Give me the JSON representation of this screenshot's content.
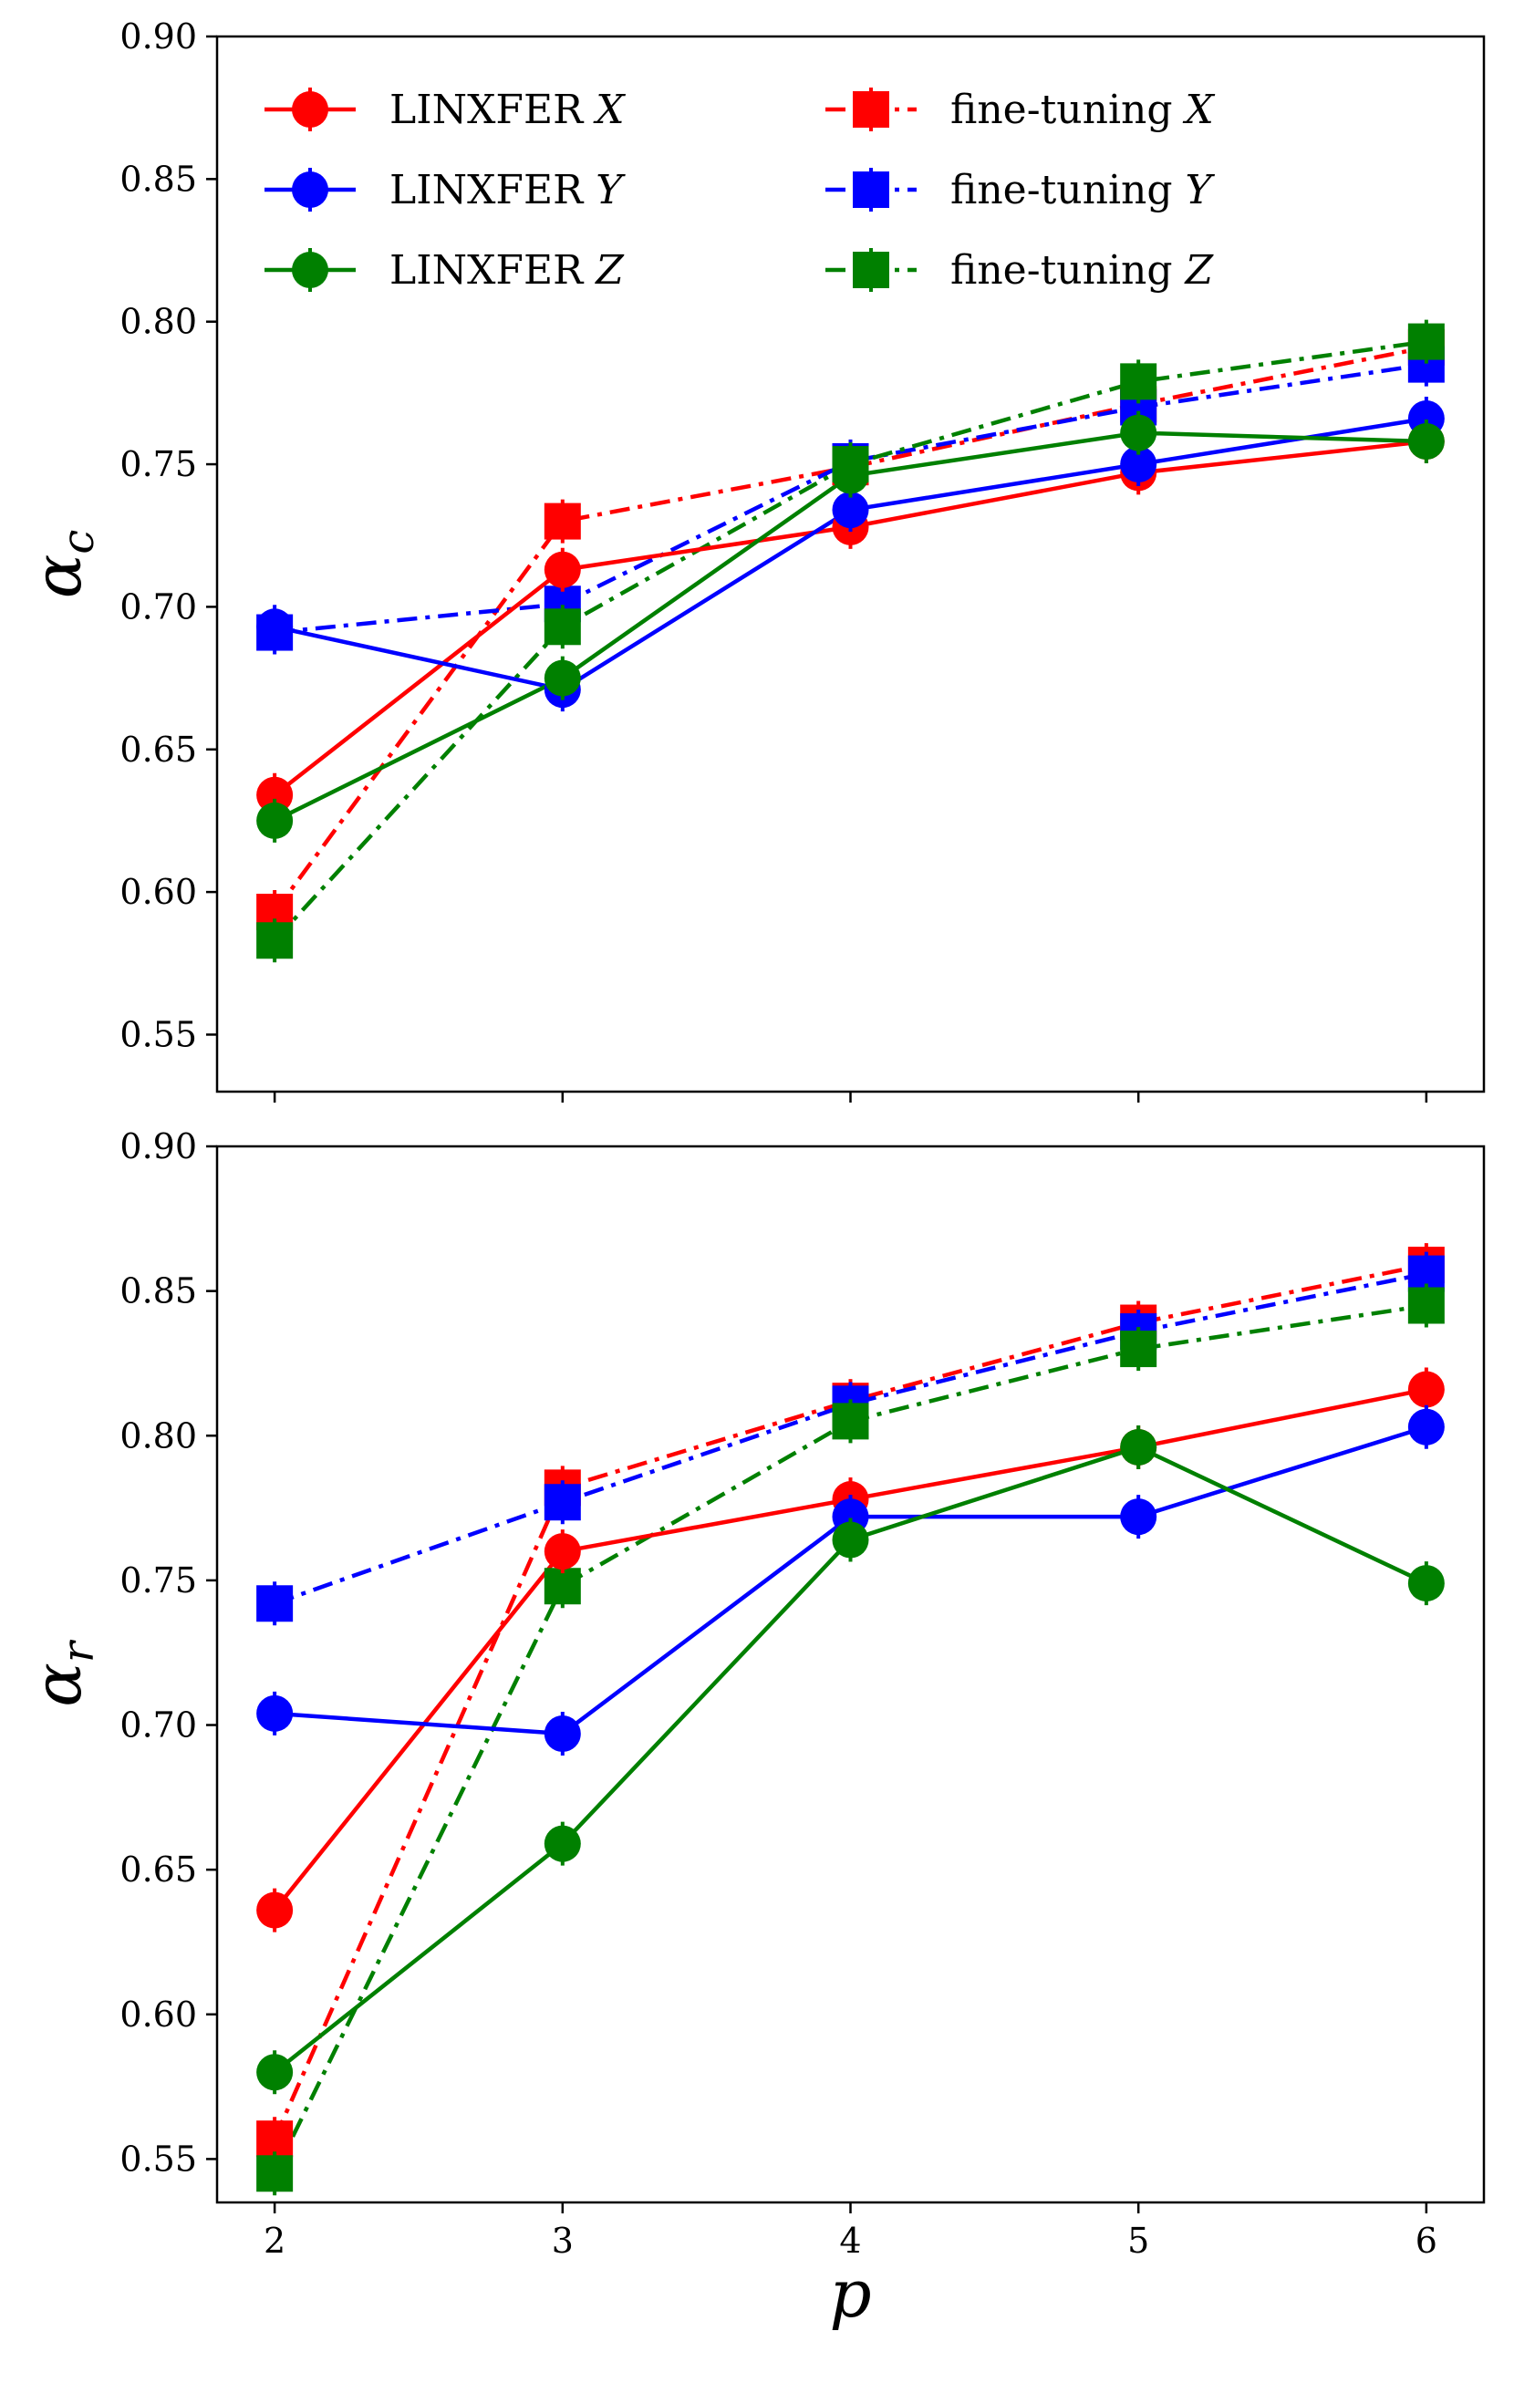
{
  "chart_data": [
    {
      "type": "line",
      "panel": "top",
      "ylabel": "αc",
      "ylabel_main": "α",
      "ylabel_sub": "c",
      "xlabel": "",
      "x": [
        2,
        3,
        4,
        5,
        6
      ],
      "xticks": [
        "2",
        "3",
        "4",
        "5",
        "6"
      ],
      "show_xtick_labels": false,
      "ylim": [
        0.53,
        0.9
      ],
      "yticks": [
        "0.55",
        "0.60",
        "0.65",
        "0.70",
        "0.75",
        "0.80",
        "0.85",
        "0.90"
      ],
      "series": [
        {
          "name": "LINXFER X",
          "color": "#ff0000",
          "marker": "circle",
          "linestyle": "solid",
          "values": [
            0.634,
            0.713,
            0.728,
            0.747,
            0.758
          ]
        },
        {
          "name": "LINXFER Y",
          "color": "#0000ff",
          "marker": "circle",
          "linestyle": "solid",
          "values": [
            0.693,
            0.671,
            0.734,
            0.75,
            0.766
          ]
        },
        {
          "name": "LINXFER Z",
          "color": "#008000",
          "marker": "circle",
          "linestyle": "solid",
          "values": [
            0.625,
            0.675,
            0.746,
            0.761,
            0.758
          ]
        },
        {
          "name": "fine-tuning X",
          "color": "#ff0000",
          "marker": "square",
          "linestyle": "dashdot",
          "values": [
            0.593,
            0.73,
            0.749,
            0.771,
            0.791
          ]
        },
        {
          "name": "fine-tuning Y",
          "color": "#0000ff",
          "marker": "square",
          "linestyle": "dashdot",
          "values": [
            0.691,
            0.701,
            0.751,
            0.77,
            0.785
          ]
        },
        {
          "name": "fine-tuning Z",
          "color": "#008000",
          "marker": "square",
          "linestyle": "dashdot",
          "values": [
            0.583,
            0.693,
            0.75,
            0.779,
            0.793
          ]
        }
      ],
      "legend": {
        "placement": "top-left",
        "entries": [
          {
            "label": "LINXFER",
            "math": "X",
            "color": "#ff0000",
            "marker": "circle",
            "linestyle": "solid"
          },
          {
            "label": "LINXFER",
            "math": "Y",
            "color": "#0000ff",
            "marker": "circle",
            "linestyle": "solid"
          },
          {
            "label": "LINXFER",
            "math": "Z",
            "color": "#008000",
            "marker": "circle",
            "linestyle": "solid"
          },
          {
            "label": "fine-tuning",
            "math": "X",
            "color": "#ff0000",
            "marker": "square",
            "linestyle": "dashdot"
          },
          {
            "label": "fine-tuning",
            "math": "Y",
            "color": "#0000ff",
            "marker": "square",
            "linestyle": "dashdot"
          },
          {
            "label": "fine-tuning",
            "math": "Z",
            "color": "#008000",
            "marker": "square",
            "linestyle": "dashdot"
          }
        ]
      }
    },
    {
      "type": "line",
      "panel": "bottom",
      "ylabel": "αr",
      "ylabel_main": "α",
      "ylabel_sub": "r",
      "xlabel": "p",
      "x": [
        2,
        3,
        4,
        5,
        6
      ],
      "xticks": [
        "2",
        "3",
        "4",
        "5",
        "6"
      ],
      "show_xtick_labels": true,
      "ylim": [
        0.535,
        0.9
      ],
      "yticks": [
        "0.55",
        "0.60",
        "0.65",
        "0.70",
        "0.75",
        "0.80",
        "0.85",
        "0.90"
      ],
      "series": [
        {
          "name": "LINXFER X",
          "color": "#ff0000",
          "marker": "circle",
          "linestyle": "solid",
          "values": [
            0.636,
            0.76,
            0.778,
            0.796,
            0.816
          ]
        },
        {
          "name": "LINXFER Y",
          "color": "#0000ff",
          "marker": "circle",
          "linestyle": "solid",
          "values": [
            0.704,
            0.697,
            0.772,
            0.772,
            0.803
          ]
        },
        {
          "name": "LINXFER Z",
          "color": "#008000",
          "marker": "circle",
          "linestyle": "solid",
          "values": [
            0.58,
            0.659,
            0.764,
            0.796,
            0.749
          ]
        },
        {
          "name": "fine-tuning X",
          "color": "#ff0000",
          "marker": "square",
          "linestyle": "dashdot",
          "values": [
            0.557,
            0.782,
            0.812,
            0.839,
            0.859
          ]
        },
        {
          "name": "fine-tuning Y",
          "color": "#0000ff",
          "marker": "square",
          "linestyle": "dashdot",
          "values": [
            0.742,
            0.777,
            0.811,
            0.836,
            0.856
          ]
        },
        {
          "name": "fine-tuning Z",
          "color": "#008000",
          "marker": "square",
          "linestyle": "dashdot",
          "values": [
            0.545,
            0.748,
            0.805,
            0.83,
            0.845
          ]
        }
      ]
    }
  ]
}
